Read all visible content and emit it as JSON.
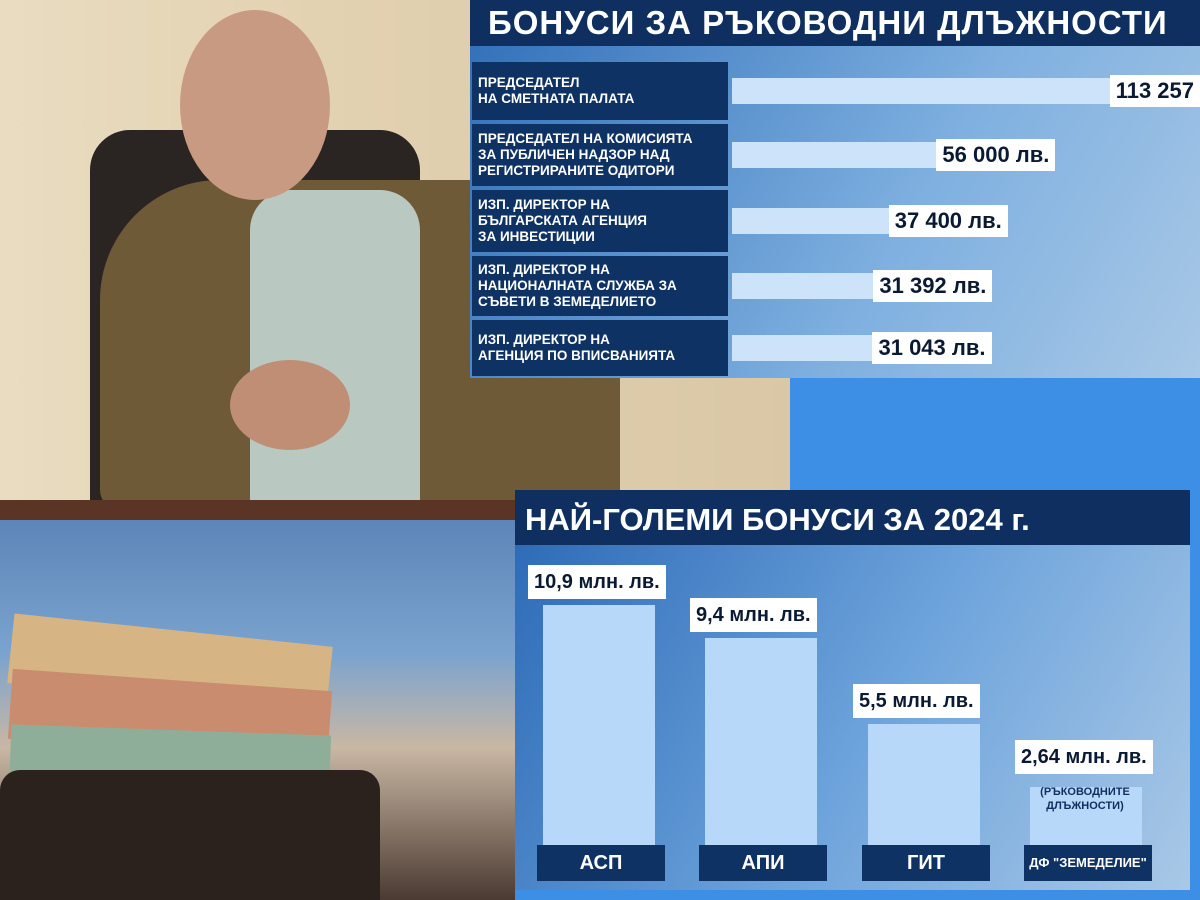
{
  "chart_data": [
    {
      "type": "bar",
      "orientation": "horizontal",
      "title": "БОНУСИ ЗА РЪКОВОДНИ ДЛЪЖНОСТИ",
      "categories": [
        "ПРЕДСЕДАТЕЛ НА СМЕТНАТА ПАЛАТА",
        "ПРЕДСЕДАТЕЛ НА КОМИСИЯТА ЗА ПУБЛИЧЕН НАДЗОР НАД РЕГИСТРИРАНИТЕ ОДИТОРИ",
        "ИЗП. ДИРЕКТОР НА БЪЛГАРСКАТА АГЕНЦИЯ ЗА ИНВЕСТИЦИИ",
        "ИЗП. ДИРЕКТОР НА НАЦИОНАЛНАТА СЛУЖБА ЗА СЪВЕТИ В ЗЕМЕДЕЛИЕТО",
        "ИЗП. ДИРЕКТОР НА АГЕНЦИЯ ПО ВПИСВАНИЯТА"
      ],
      "label_lines": [
        [
          "ПРЕДСЕДАТЕЛ",
          "НА СМЕТНАТА ПАЛАТА"
        ],
        [
          "ПРЕДСЕДАТЕЛ НА КОМИСИЯТА",
          "ЗА ПУБЛИЧЕН НАДЗОР НАД",
          "РЕГИСТРИРАНИТЕ ОДИТОРИ"
        ],
        [
          "ИЗП. ДИРЕКТОР НА",
          "БЪЛГАРСКАТА АГЕНЦИЯ",
          "ЗА ИНВЕСТИЦИИ"
        ],
        [
          "ИЗП. ДИРЕКТОР НА",
          "НАЦИОНАЛНАТА СЛУЖБА ЗА",
          "СЪВЕТИ В ЗЕМЕДЕЛИЕТО"
        ],
        [
          "ИЗП. ДИРЕКТОР НА",
          "АГЕНЦИЯ ПО ВПИСВАНИЯТА"
        ]
      ],
      "values": [
        113257,
        56000,
        37400,
        31392,
        31043
      ],
      "data_labels": [
        "113 257",
        "56 000 лв.",
        "37 400 лв.",
        "31 392 лв.",
        "31 043 лв."
      ],
      "colors": {
        "bar": "#cde3fa",
        "label_bg": "#0e3263"
      }
    },
    {
      "type": "bar",
      "title": "НАЙ-ГОЛЕМИ БОНУСИ ЗА 2024 г.",
      "categories": [
        "АСП",
        "АПИ",
        "ГИТ",
        "ДФ \"ЗЕМЕДЕЛИЕ\""
      ],
      "values": [
        10.9,
        9.4,
        5.5,
        2.64
      ],
      "data_labels": [
        "10,9 млн. лв.",
        "9,4 млн. лв.",
        "5,5 млн. лв.",
        "2,64 млн. лв."
      ],
      "annotation": "(РЪКОВОДНИТЕ ДЛЪЖНОСТИ)",
      "annotation_lines": [
        "(РЪКОВОДНИТЕ",
        "ДЛЪЖНОСТИ)"
      ],
      "colors": {
        "bar": "#b8d8fa",
        "label_bg": "#0e3263"
      }
    }
  ]
}
